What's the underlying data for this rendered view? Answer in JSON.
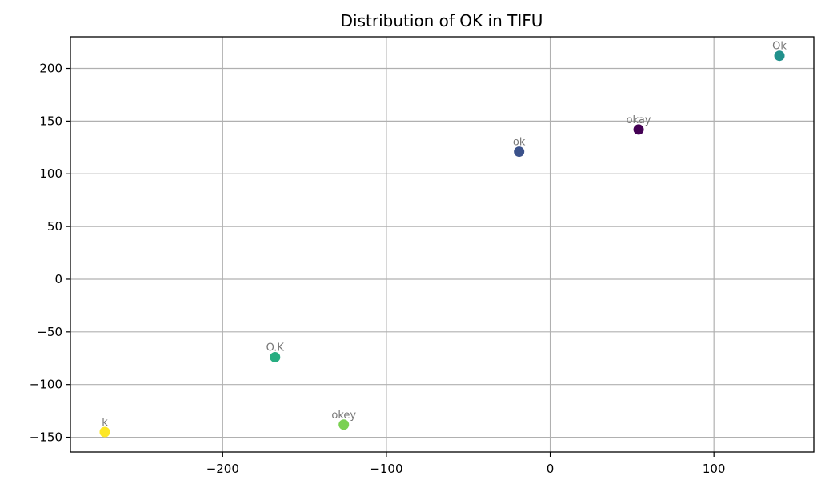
{
  "chart_data": {
    "type": "scatter",
    "title": "Distribution of OK in TIFU",
    "xlabel": "",
    "ylabel": "",
    "xlim": [
      -293,
      161
    ],
    "ylim": [
      -164,
      230
    ],
    "x_ticks": [
      -200,
      -100,
      0,
      100
    ],
    "y_ticks": [
      -150,
      -100,
      -50,
      0,
      50,
      100,
      150,
      200
    ],
    "grid": true,
    "points": [
      {
        "label": "okay",
        "x": 54,
        "y": 142,
        "color": "#440154"
      },
      {
        "label": "ok",
        "x": -19,
        "y": 121,
        "color": "#3b528b"
      },
      {
        "label": "Ok",
        "x": 140,
        "y": 212,
        "color": "#21918c"
      },
      {
        "label": "O.K",
        "x": -168,
        "y": -74,
        "color": "#27ad81"
      },
      {
        "label": "okey",
        "x": -126,
        "y": -138,
        "color": "#7ad151"
      },
      {
        "label": "k",
        "x": -272,
        "y": -145,
        "color": "#fde725"
      }
    ]
  }
}
